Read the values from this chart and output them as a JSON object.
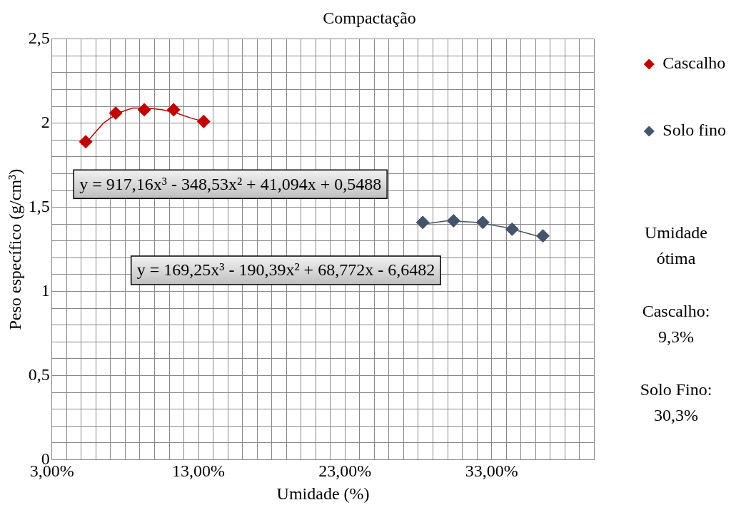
{
  "chart_data": {
    "type": "scatter",
    "title": "Compactação",
    "xlabel": "Umidade (%)",
    "ylabel": "Peso específico (g/cm³)",
    "xlim": [
      0.03,
      0.4
    ],
    "xticks": [
      {
        "value": 0.03,
        "label": "3,00%"
      },
      {
        "value": 0.04,
        "label": null
      },
      {
        "value": 0.05,
        "label": null
      },
      {
        "value": 0.06,
        "label": null
      },
      {
        "value": 0.07,
        "label": null
      },
      {
        "value": 0.08,
        "label": null
      },
      {
        "value": 0.09,
        "label": null
      },
      {
        "value": 0.1,
        "label": null
      },
      {
        "value": 0.11,
        "label": null
      },
      {
        "value": 0.12,
        "label": null
      },
      {
        "value": 0.13,
        "label": "13,00%"
      },
      {
        "value": 0.14,
        "label": null
      },
      {
        "value": 0.15,
        "label": null
      },
      {
        "value": 0.16,
        "label": null
      },
      {
        "value": 0.17,
        "label": null
      },
      {
        "value": 0.18,
        "label": null
      },
      {
        "value": 0.19,
        "label": null
      },
      {
        "value": 0.2,
        "label": null
      },
      {
        "value": 0.21,
        "label": null
      },
      {
        "value": 0.22,
        "label": null
      },
      {
        "value": 0.23,
        "label": "23,00%"
      },
      {
        "value": 0.24,
        "label": null
      },
      {
        "value": 0.25,
        "label": null
      },
      {
        "value": 0.26,
        "label": null
      },
      {
        "value": 0.27,
        "label": null
      },
      {
        "value": 0.28,
        "label": null
      },
      {
        "value": 0.29,
        "label": null
      },
      {
        "value": 0.3,
        "label": null
      },
      {
        "value": 0.31,
        "label": null
      },
      {
        "value": 0.32,
        "label": null
      },
      {
        "value": 0.33,
        "label": "33,00%"
      },
      {
        "value": 0.34,
        "label": null
      },
      {
        "value": 0.35,
        "label": null
      },
      {
        "value": 0.36,
        "label": null
      },
      {
        "value": 0.37,
        "label": null
      },
      {
        "value": 0.38,
        "label": null
      },
      {
        "value": 0.39,
        "label": null
      },
      {
        "value": 0.4,
        "label": null
      }
    ],
    "ylim": [
      0,
      2.5
    ],
    "yticks": [
      0,
      {
        "value": 0.1,
        "label": null
      },
      {
        "value": 0.2,
        "label": null
      },
      {
        "value": 0.3,
        "label": null
      },
      {
        "value": 0.4,
        "label": null
      },
      {
        "value": 0.5,
        "label": "0,5"
      },
      {
        "value": 0.6,
        "label": null
      },
      {
        "value": 0.7,
        "label": null
      },
      {
        "value": 0.8,
        "label": null
      },
      {
        "value": 0.9,
        "label": null
      },
      1,
      {
        "value": 1.1,
        "label": null
      },
      {
        "value": 1.2,
        "label": null
      },
      {
        "value": 1.3,
        "label": null
      },
      {
        "value": 1.4,
        "label": null
      },
      {
        "value": 1.5,
        "label": "1,5"
      },
      {
        "value": 1.6,
        "label": null
      },
      {
        "value": 1.7,
        "label": null
      },
      {
        "value": 1.8,
        "label": null
      },
      {
        "value": 1.9,
        "label": null
      },
      2,
      {
        "value": 2.1,
        "label": null
      },
      {
        "value": 2.2,
        "label": null
      },
      {
        "value": 2.3,
        "label": null
      },
      {
        "value": 2.4,
        "label": null
      },
      {
        "value": 2.5,
        "label": "2,5"
      }
    ],
    "grid": true,
    "legend": "top right",
    "marker": "diamond",
    "series": [
      {
        "name": "Cascalho",
        "type": "scatter",
        "color": "#c00000",
        "x": [
          0.053,
          0.0735,
          0.093,
          0.113,
          0.1335
        ],
        "values": [
          1.89,
          2.06,
          2.08,
          2.08,
          2.01
        ]
      },
      {
        "type": "line",
        "marker": "none",
        "color": "#c00000",
        "x": [
          0.053,
          0.065,
          0.075,
          0.085,
          0.095,
          0.105,
          0.115,
          0.125,
          0.1335
        ],
        "values": [
          1.88,
          2.0,
          2.06,
          2.09,
          2.09,
          2.08,
          2.06,
          2.03,
          2.01
        ]
      },
      {
        "name": "Solo fino",
        "type": "scatter",
        "color": "#44546a",
        "x": [
          0.283,
          0.304,
          0.324,
          0.344,
          0.365
        ],
        "values": [
          1.41,
          1.42,
          1.41,
          1.37,
          1.33
        ]
      },
      {
        "type": "line",
        "marker": "none",
        "color": "#44546a",
        "x": [
          0.283,
          0.3,
          0.32,
          0.34,
          0.365
        ],
        "values": [
          1.4,
          1.42,
          1.41,
          1.38,
          1.32
        ]
      }
    ],
    "annotations": [
      "y = 917,16x³ - 348,53x² + 41,094x + 0,5488",
      "y = 169,25x³ - 190,39x² + 68,772x - 6,6482",
      "Umidade ótima",
      "Cascalho: 9,3%",
      "Solo Fino: 30,3%"
    ]
  }
}
